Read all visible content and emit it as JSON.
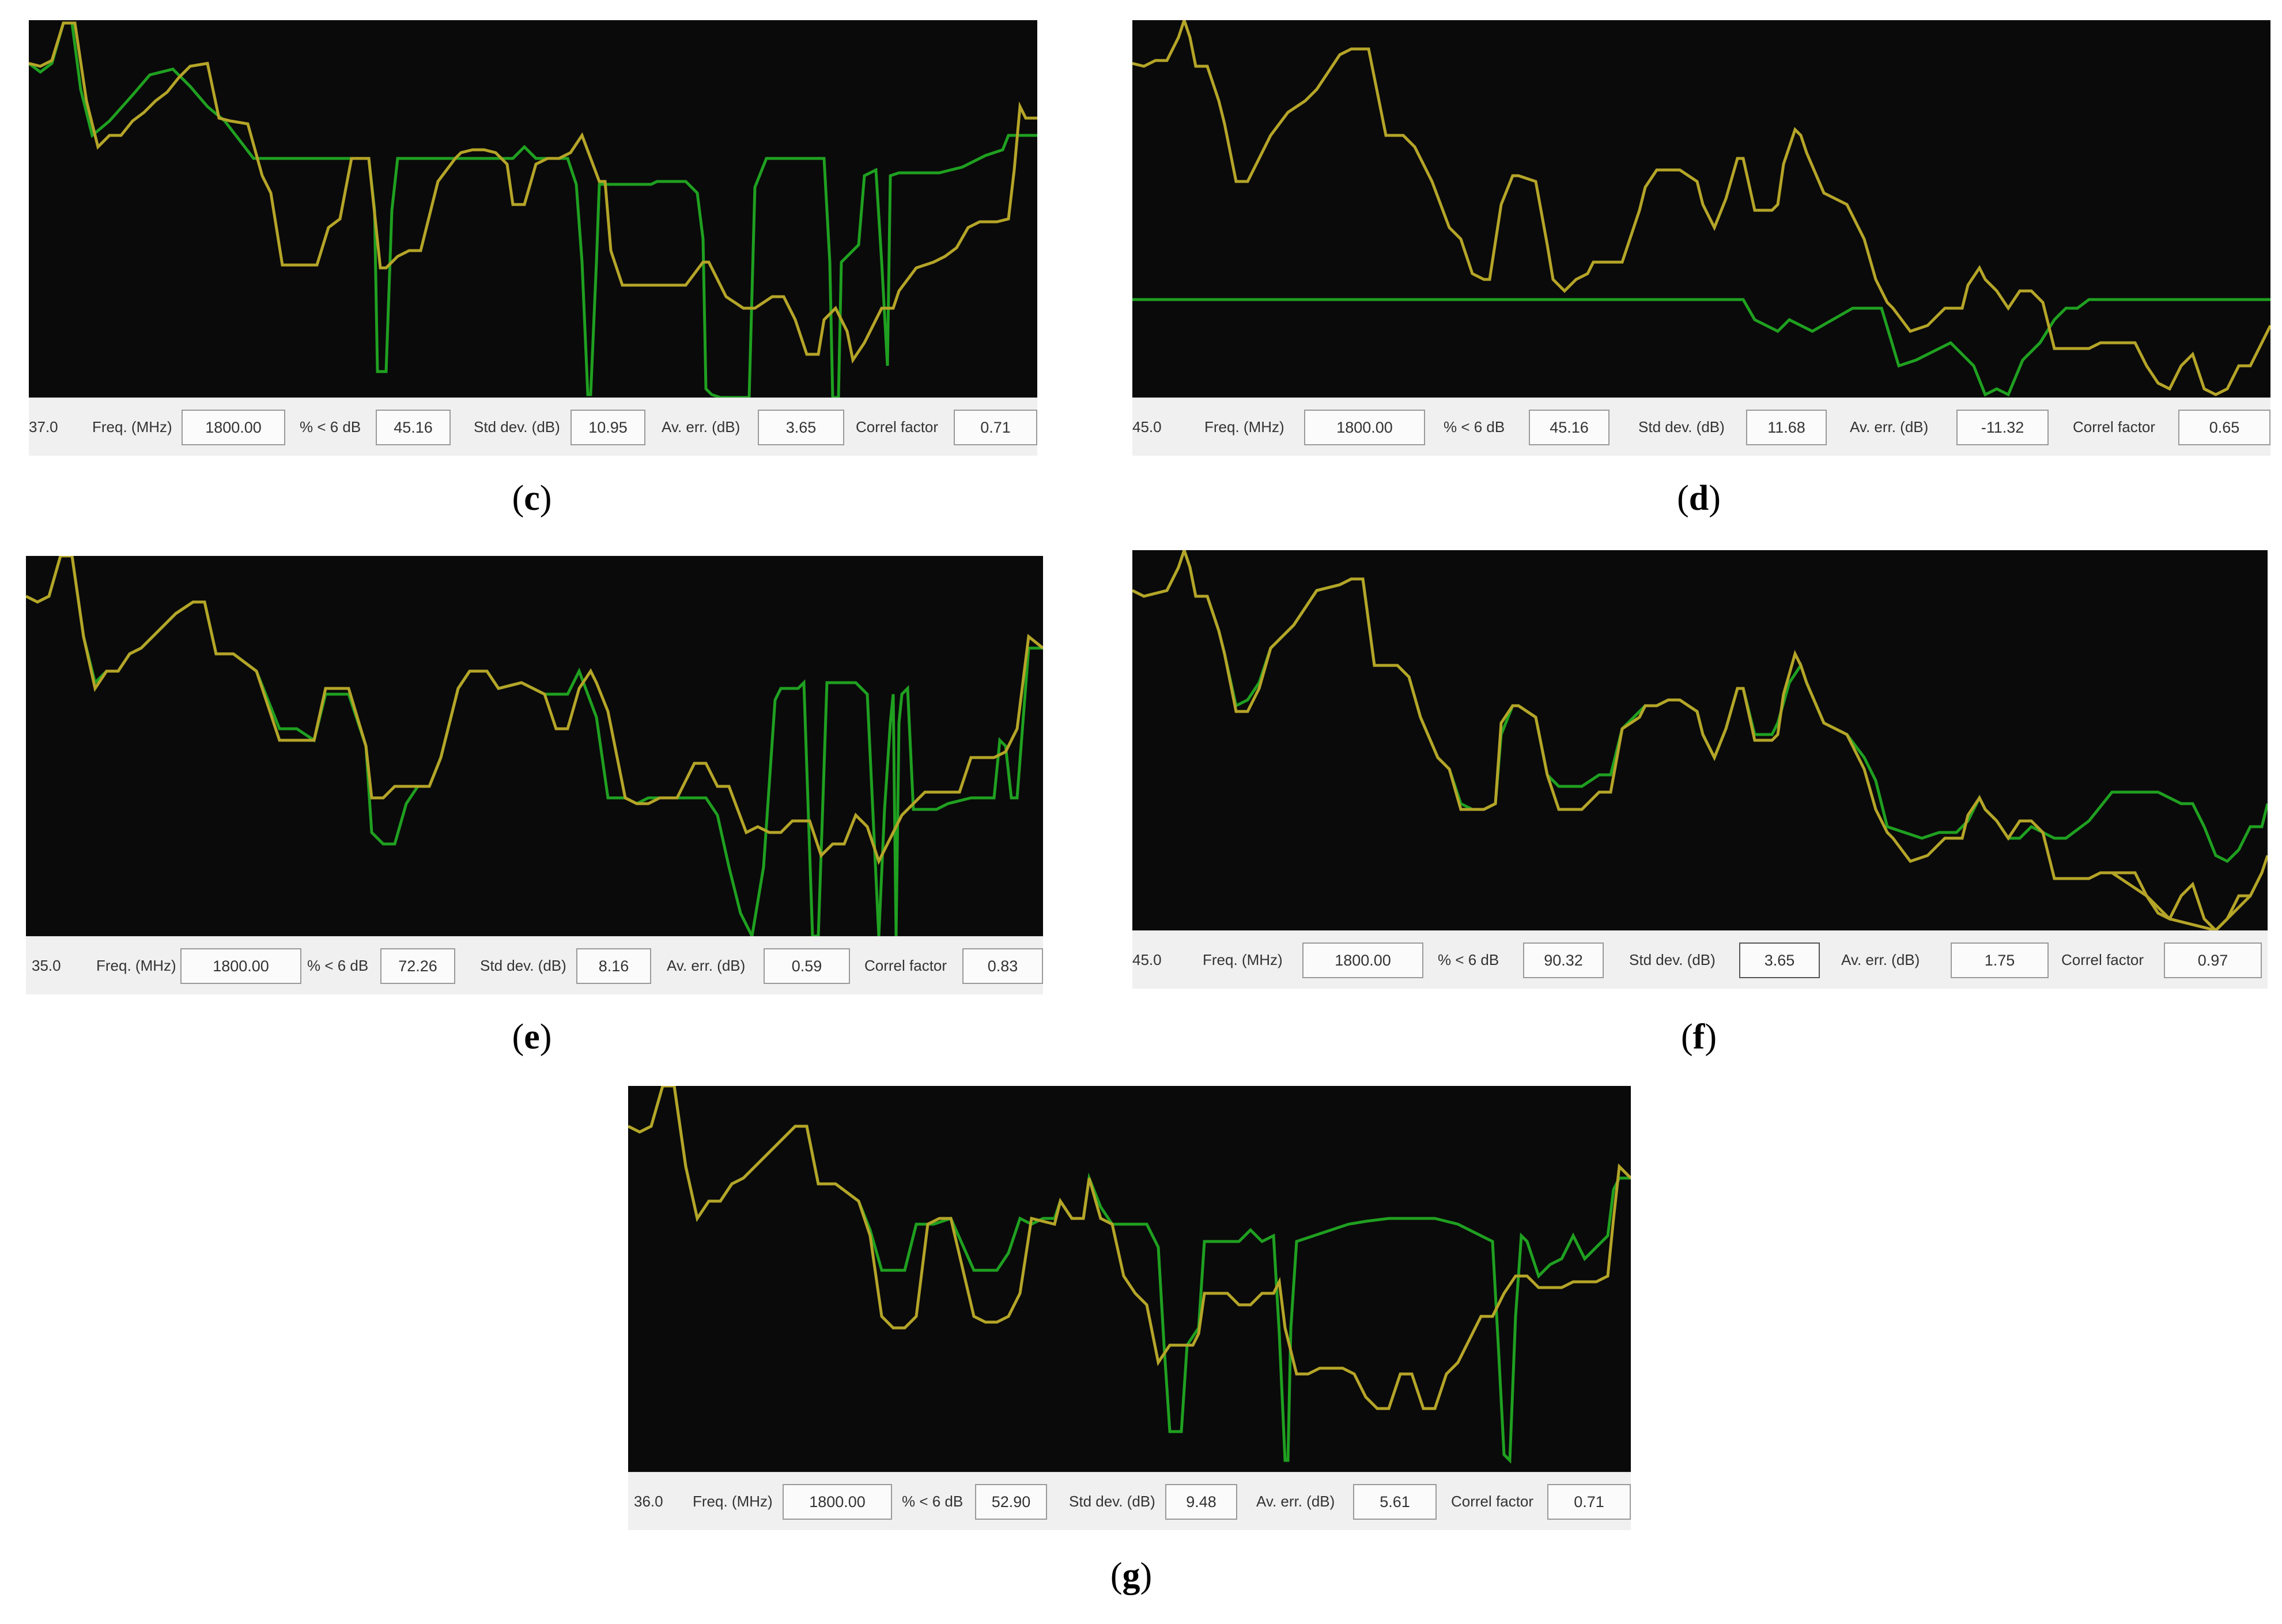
{
  "colors": {
    "plot_background": "#0a0a0a",
    "measured_trace": "#b5a528",
    "predicted_trace": "#1fa020",
    "status_bar": "#f0f0f0"
  },
  "panels": [
    {
      "id": "c",
      "caption": "c",
      "readout": "37.0",
      "freq_label": "Freq. (MHz)",
      "freq_value": "1800.00",
      "pct_label": "% < 6 dB",
      "pct_value": "45.16",
      "std_label": "Std dev. (dB)",
      "std_value": "10.95",
      "err_label": "Av. err. (dB)",
      "err_value": "3.65",
      "corr_label": "Correl factor",
      "corr_value": "0.71"
    },
    {
      "id": "d",
      "caption": "d",
      "readout": "45.0",
      "freq_label": "Freq. (MHz)",
      "freq_value": "1800.00",
      "pct_label": "% < 6 dB",
      "pct_value": "45.16",
      "std_label": "Std dev. (dB)",
      "std_value": "11.68",
      "err_label": "Av. err. (dB)",
      "err_value": "-11.32",
      "corr_label": "Correl factor",
      "corr_value": "0.65"
    },
    {
      "id": "e",
      "caption": "e",
      "readout": "35.0",
      "freq_label": "Freq. (MHz)",
      "freq_value": "1800.00",
      "pct_label": "% < 6 dB",
      "pct_value": "72.26",
      "std_label": "Std dev. (dB)",
      "std_value": "8.16",
      "err_label": "Av. err. (dB)",
      "err_value": "0.59",
      "corr_label": "Correl factor",
      "corr_value": "0.83"
    },
    {
      "id": "f",
      "caption": "f",
      "readout": "45.0",
      "freq_label": "Freq. (MHz)",
      "freq_value": "1800.00",
      "pct_label": "% < 6 dB",
      "pct_value": "90.32",
      "std_label": "Std dev. (dB)",
      "std_value": "3.65",
      "err_label": "Av. err. (dB)",
      "err_value": "1.75",
      "corr_label": "Correl factor",
      "corr_value": "0.97"
    },
    {
      "id": "g",
      "caption": "g",
      "readout": "36.0",
      "freq_label": "Freq. (MHz)",
      "freq_value": "1800.00",
      "pct_label": "% < 6 dB",
      "pct_value": "52.90",
      "std_label": "Std dev. (dB)",
      "std_value": "9.48",
      "err_label": "Av. err. (dB)",
      "err_value": "5.61",
      "corr_label": "Correl factor",
      "corr_value": "0.71"
    }
  ]
}
